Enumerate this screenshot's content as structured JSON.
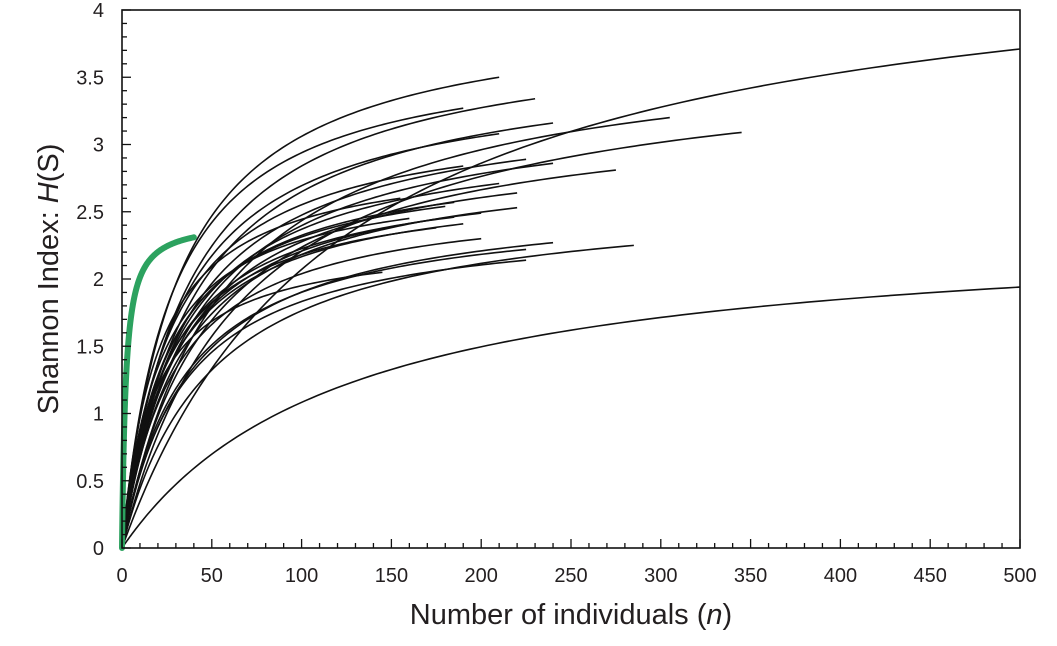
{
  "chart_data": {
    "type": "line",
    "title": "",
    "xlabel": {
      "text": "Number of individuals (",
      "italic": "n",
      "suffix": ")"
    },
    "ylabel": {
      "text": "Shannon Index: ",
      "italic": "H",
      "suffix": "(S)"
    },
    "xlim": [
      0,
      500
    ],
    "ylim": [
      0,
      4
    ],
    "x_ticks": [
      "0",
      "50",
      "100",
      "150",
      "200",
      "250",
      "300",
      "350",
      "400",
      "450",
      "500"
    ],
    "y_ticks": [
      "0",
      "0.5",
      "1",
      "1.5",
      "2",
      "2.5",
      "3",
      "3.5",
      "4"
    ],
    "grid": false,
    "legend": "none",
    "colors": {
      "curves": "#111111",
      "highlight": "#2ca25f",
      "axis": "#111111"
    },
    "series": [
      {
        "x_end": 500,
        "y_end": 3.71
      },
      {
        "x_end": 210,
        "y_end": 3.5
      },
      {
        "x_end": 230,
        "y_end": 3.34
      },
      {
        "x_end": 190,
        "y_end": 3.27
      },
      {
        "x_end": 305,
        "y_end": 3.2
      },
      {
        "x_end": 240,
        "y_end": 3.16
      },
      {
        "x_end": 345,
        "y_end": 3.09
      },
      {
        "x_end": 210,
        "y_end": 3.08
      },
      {
        "x_end": 225,
        "y_end": 2.89
      },
      {
        "x_end": 240,
        "y_end": 2.86
      },
      {
        "x_end": 275,
        "y_end": 2.81
      },
      {
        "x_end": 190,
        "y_end": 2.84
      },
      {
        "x_end": 210,
        "y_end": 2.71
      },
      {
        "x_end": 220,
        "y_end": 2.64
      },
      {
        "x_end": 155,
        "y_end": 2.6
      },
      {
        "x_end": 185,
        "y_end": 2.57
      },
      {
        "x_end": 180,
        "y_end": 2.54
      },
      {
        "x_end": 220,
        "y_end": 2.53
      },
      {
        "x_end": 200,
        "y_end": 2.49
      },
      {
        "x_end": 185,
        "y_end": 2.46
      },
      {
        "x_end": 160,
        "y_end": 2.45
      },
      {
        "x_end": 190,
        "y_end": 2.41
      },
      {
        "x_end": 175,
        "y_end": 2.38
      },
      {
        "x_end": 200,
        "y_end": 2.3
      },
      {
        "x_end": 240,
        "y_end": 2.27
      },
      {
        "x_end": 285,
        "y_end": 2.25
      },
      {
        "x_end": 225,
        "y_end": 2.22
      },
      {
        "x_end": 225,
        "y_end": 2.14
      },
      {
        "x_end": 145,
        "y_end": 2.05
      },
      {
        "x_end": 500,
        "y_end": 1.94
      }
    ],
    "highlight_series": {
      "x_end": 40,
      "y_end": 2.31
    }
  }
}
